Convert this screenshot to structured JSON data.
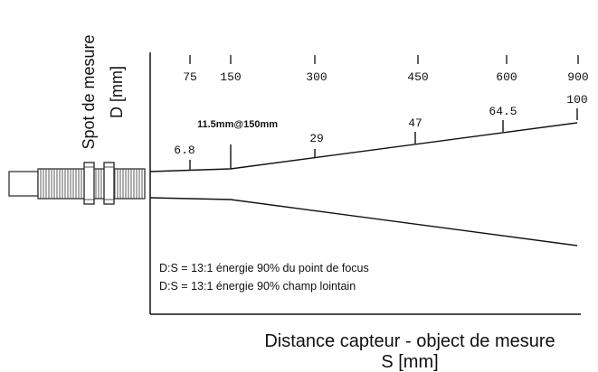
{
  "y_axis_title": {
    "line1": "Spot de mesure",
    "line2": "D [mm]"
  },
  "x_axis_title": {
    "line1": "Distance capteur - object de mesure",
    "line2": "S [mm]"
  },
  "distance_ticks": [
    "75",
    "150",
    "300",
    "450",
    "600",
    "900"
  ],
  "spot_labels": [
    "6.8",
    "11.5mm@150mm",
    "29",
    "47",
    "64.5",
    "100"
  ],
  "notes": [
    "D:S = 13:1 énergie 90% du point de focus",
    "D:S = 13:1 énergie 90% champ lointain"
  ]
}
